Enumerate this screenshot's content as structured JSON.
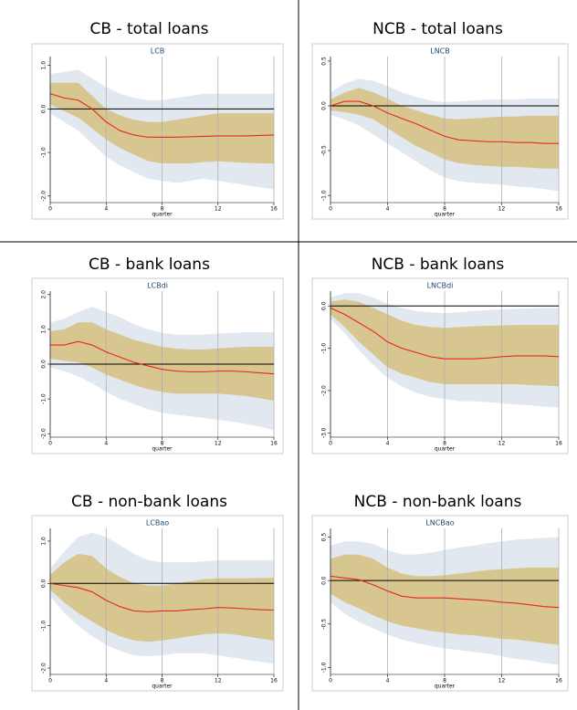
{
  "chart_data": [
    {
      "type": "irf",
      "title": "CB - total loans",
      "subtitle": "LCB",
      "xlabel": "quarter",
      "x": [
        0,
        1,
        2,
        3,
        4,
        5,
        6,
        7,
        8,
        9,
        10,
        11,
        12,
        13,
        14,
        15,
        16
      ],
      "xlim": [
        0,
        16
      ],
      "xticks": [
        0,
        4,
        8,
        12,
        16
      ],
      "ylim": [
        -2.15,
        1.2
      ],
      "yticks": [
        {
          "value": 1,
          "label": "1.0"
        },
        {
          "value": 0,
          "label": "0.0"
        },
        {
          "value": -1,
          "label": "-1.0"
        },
        {
          "value": -2,
          "label": "-2.0"
        }
      ],
      "hline": 0,
      "grid": true,
      "color": "#e8251f",
      "values": [
        0.35,
        0.25,
        0.2,
        0.0,
        -0.3,
        -0.5,
        -0.6,
        -0.65,
        -0.65,
        -0.65,
        -0.64,
        -0.63,
        -0.62,
        -0.62,
        -0.62,
        -0.61,
        -0.6
      ],
      "bands": [
        {
          "color": "#e1e8ef",
          "upper": [
            0.8,
            0.85,
            0.9,
            0.7,
            0.5,
            0.35,
            0.25,
            0.2,
            0.2,
            0.25,
            0.3,
            0.35,
            0.35,
            0.35,
            0.35,
            0.35,
            0.35
          ],
          "lower": [
            -0.1,
            -0.3,
            -0.5,
            -0.8,
            -1.1,
            -1.3,
            -1.45,
            -1.6,
            -1.65,
            -1.7,
            -1.65,
            -1.6,
            -1.65,
            -1.7,
            -1.75,
            -1.8,
            -1.85
          ]
        },
        {
          "color": "#d7c68f",
          "upper": [
            0.6,
            0.6,
            0.6,
            0.3,
            0.0,
            -0.15,
            -0.25,
            -0.3,
            -0.3,
            -0.25,
            -0.2,
            -0.15,
            -0.1,
            -0.1,
            -0.1,
            -0.1,
            -0.1
          ],
          "lower": [
            0.1,
            -0.05,
            -0.2,
            -0.45,
            -0.7,
            -0.9,
            -1.05,
            -1.2,
            -1.25,
            -1.25,
            -1.25,
            -1.22,
            -1.2,
            -1.22,
            -1.24,
            -1.25,
            -1.25
          ]
        }
      ]
    },
    {
      "type": "irf",
      "title": "NCB - total loans",
      "subtitle": "LNCB",
      "xlabel": "quarter",
      "x": [
        0,
        1,
        2,
        3,
        4,
        5,
        6,
        7,
        8,
        9,
        10,
        11,
        12,
        13,
        14,
        15,
        16
      ],
      "xlim": [
        0,
        16
      ],
      "xticks": [
        0,
        4,
        8,
        12,
        16
      ],
      "ylim": [
        -1.08,
        0.55
      ],
      "yticks": [
        0.5,
        {
          "value": 0,
          "label": "0.0"
        },
        -0.5,
        {
          "value": -1,
          "label": "-1.0"
        }
      ],
      "hline": 0,
      "grid": true,
      "color": "#e8251f",
      "values": [
        0.0,
        0.05,
        0.05,
        0.0,
        -0.08,
        -0.14,
        -0.2,
        -0.27,
        -0.34,
        -0.38,
        -0.39,
        -0.4,
        -0.4,
        -0.41,
        -0.41,
        -0.42,
        -0.42
      ],
      "bands": [
        {
          "color": "#e1e8ef",
          "upper": [
            0.15,
            0.25,
            0.3,
            0.28,
            0.22,
            0.15,
            0.1,
            0.06,
            0.04,
            0.05,
            0.06,
            0.07,
            0.07,
            0.07,
            0.08,
            0.08,
            0.08
          ],
          "lower": [
            -0.1,
            -0.15,
            -0.22,
            -0.32,
            -0.42,
            -0.52,
            -0.62,
            -0.72,
            -0.8,
            -0.84,
            -0.86,
            -0.87,
            -0.88,
            -0.9,
            -0.91,
            -0.93,
            -0.95
          ]
        },
        {
          "color": "#d7c68f",
          "upper": [
            0.07,
            0.15,
            0.2,
            0.15,
            0.08,
            0.0,
            -0.05,
            -0.1,
            -0.14,
            -0.15,
            -0.14,
            -0.13,
            -0.12,
            -0.12,
            -0.11,
            -0.11,
            -0.11
          ],
          "lower": [
            -0.05,
            -0.07,
            -0.1,
            -0.15,
            -0.25,
            -0.35,
            -0.45,
            -0.52,
            -0.6,
            -0.64,
            -0.66,
            -0.67,
            -0.68,
            -0.68,
            -0.69,
            -0.7,
            -0.7
          ]
        }
      ]
    },
    {
      "type": "irf",
      "title": "CB - bank loans",
      "subtitle": "LCBdi",
      "xlabel": "quarter",
      "x": [
        0,
        1,
        2,
        3,
        4,
        5,
        6,
        7,
        8,
        9,
        10,
        11,
        12,
        13,
        14,
        15,
        16
      ],
      "xlim": [
        0,
        16
      ],
      "xticks": [
        0,
        4,
        8,
        12,
        16
      ],
      "ylim": [
        -2.1,
        2.1
      ],
      "yticks": [
        {
          "value": 2,
          "label": "2.0"
        },
        {
          "value": 1,
          "label": "1.0"
        },
        {
          "value": 0,
          "label": "0.0"
        },
        {
          "value": -1,
          "label": "-1.0"
        },
        {
          "value": -2,
          "label": "-2.0"
        }
      ],
      "hline": 0,
      "grid": true,
      "color": "#e8251f",
      "values": [
        0.55,
        0.55,
        0.65,
        0.55,
        0.35,
        0.2,
        0.05,
        -0.05,
        -0.15,
        -0.2,
        -0.22,
        -0.22,
        -0.2,
        -0.2,
        -0.22,
        -0.25,
        -0.28
      ],
      "bands": [
        {
          "color": "#e1e8ef",
          "upper": [
            1.2,
            1.3,
            1.5,
            1.65,
            1.5,
            1.35,
            1.15,
            1.0,
            0.9,
            0.85,
            0.85,
            0.85,
            0.88,
            0.9,
            0.92,
            0.92,
            0.92
          ],
          "lower": [
            -0.1,
            -0.2,
            -0.35,
            -0.55,
            -0.8,
            -1.0,
            -1.15,
            -1.3,
            -1.4,
            -1.45,
            -1.5,
            -1.55,
            -1.6,
            -1.65,
            -1.72,
            -1.8,
            -1.9
          ]
        },
        {
          "color": "#d7c68f",
          "upper": [
            0.95,
            1.0,
            1.2,
            1.2,
            1.0,
            0.85,
            0.7,
            0.6,
            0.5,
            0.45,
            0.42,
            0.42,
            0.45,
            0.48,
            0.5,
            0.5,
            0.5
          ],
          "lower": [
            0.15,
            0.1,
            0.05,
            -0.1,
            -0.3,
            -0.45,
            -0.6,
            -0.72,
            -0.8,
            -0.85,
            -0.85,
            -0.85,
            -0.85,
            -0.88,
            -0.92,
            -0.98,
            -1.05
          ]
        }
      ]
    },
    {
      "type": "irf",
      "title": "NCB - bank loans",
      "subtitle": "LNCBdi",
      "xlabel": "quarter",
      "x": [
        0,
        1,
        2,
        3,
        4,
        5,
        6,
        7,
        8,
        9,
        10,
        11,
        12,
        13,
        14,
        15,
        16
      ],
      "xlim": [
        0,
        16
      ],
      "xticks": [
        0,
        4,
        8,
        12,
        16
      ],
      "ylim": [
        -3.1,
        0.35
      ],
      "yticks": [
        {
          "value": 0,
          "label": "0.0"
        },
        {
          "value": -1,
          "label": "-1.0"
        },
        {
          "value": -2,
          "label": "-2.0"
        },
        {
          "value": -3,
          "label": "-3.0"
        }
      ],
      "hline": 0,
      "grid": true,
      "color": "#e8251f",
      "values": [
        -0.05,
        -0.2,
        -0.4,
        -0.6,
        -0.85,
        -1.0,
        -1.1,
        -1.2,
        -1.25,
        -1.25,
        -1.25,
        -1.23,
        -1.2,
        -1.18,
        -1.18,
        -1.18,
        -1.2
      ],
      "bands": [
        {
          "color": "#e1e8ef",
          "upper": [
            0.2,
            0.3,
            0.3,
            0.2,
            0.05,
            -0.05,
            -0.12,
            -0.15,
            -0.17,
            -0.15,
            -0.12,
            -0.1,
            -0.08,
            -0.07,
            -0.06,
            -0.05,
            -0.05
          ],
          "lower": [
            -0.3,
            -0.65,
            -1.05,
            -1.4,
            -1.7,
            -1.9,
            -2.05,
            -2.15,
            -2.2,
            -2.25,
            -2.25,
            -2.27,
            -2.3,
            -2.33,
            -2.35,
            -2.38,
            -2.4
          ]
        },
        {
          "color": "#d7c68f",
          "upper": [
            0.1,
            0.15,
            0.1,
            -0.05,
            -0.2,
            -0.35,
            -0.45,
            -0.5,
            -0.52,
            -0.5,
            -0.48,
            -0.47,
            -0.46,
            -0.45,
            -0.45,
            -0.45,
            -0.45
          ],
          "lower": [
            -0.2,
            -0.5,
            -0.85,
            -1.15,
            -1.45,
            -1.6,
            -1.7,
            -1.8,
            -1.85,
            -1.85,
            -1.85,
            -1.85,
            -1.85,
            -1.85,
            -1.87,
            -1.88,
            -1.9
          ]
        }
      ]
    },
    {
      "type": "irf",
      "title": "CB - non-bank loans",
      "subtitle": "LCBao",
      "xlabel": "quarter",
      "x": [
        0,
        1,
        2,
        3,
        4,
        5,
        6,
        7,
        8,
        9,
        10,
        11,
        12,
        13,
        14,
        15,
        16
      ],
      "xlim": [
        0,
        16
      ],
      "xticks": [
        0,
        4,
        8,
        12,
        16
      ],
      "ylim": [
        -2.15,
        1.3
      ],
      "yticks": [
        {
          "value": 1,
          "label": "1.0"
        },
        {
          "value": 0,
          "label": "0.0"
        },
        {
          "value": -1,
          "label": "-1.0"
        },
        {
          "value": -2,
          "label": "-2.0"
        }
      ],
      "hline": 0,
      "grid": true,
      "color": "#e8251f",
      "values": [
        0.0,
        -0.05,
        -0.1,
        -0.2,
        -0.4,
        -0.55,
        -0.65,
        -0.67,
        -0.65,
        -0.65,
        -0.62,
        -0.6,
        -0.57,
        -0.58,
        -0.6,
        -0.62,
        -0.63
      ],
      "bands": [
        {
          "color": "#e1e8ef",
          "upper": [
            0.35,
            0.75,
            1.1,
            1.2,
            1.1,
            0.9,
            0.7,
            0.55,
            0.5,
            0.5,
            0.5,
            0.52,
            0.55,
            0.55,
            0.55,
            0.55,
            0.55
          ],
          "lower": [
            -0.3,
            -0.7,
            -1.0,
            -1.25,
            -1.45,
            -1.6,
            -1.7,
            -1.72,
            -1.7,
            -1.65,
            -1.65,
            -1.65,
            -1.7,
            -1.75,
            -1.8,
            -1.85,
            -1.9
          ]
        },
        {
          "color": "#d7c68f",
          "upper": [
            0.2,
            0.5,
            0.7,
            0.65,
            0.35,
            0.15,
            0.0,
            -0.05,
            -0.05,
            0.0,
            0.05,
            0.1,
            0.12,
            0.12,
            0.12,
            0.13,
            0.13
          ],
          "lower": [
            -0.15,
            -0.45,
            -0.7,
            -0.9,
            -1.1,
            -1.25,
            -1.35,
            -1.38,
            -1.35,
            -1.3,
            -1.25,
            -1.2,
            -1.18,
            -1.2,
            -1.25,
            -1.3,
            -1.35
          ]
        }
      ]
    },
    {
      "type": "irf",
      "title": "NCB - non-bank loans",
      "subtitle": "LNCBao",
      "xlabel": "quarter",
      "x": [
        0,
        1,
        2,
        3,
        4,
        5,
        6,
        7,
        8,
        9,
        10,
        11,
        12,
        13,
        14,
        15,
        16
      ],
      "xlim": [
        0,
        16
      ],
      "xticks": [
        0,
        4,
        8,
        12,
        16
      ],
      "ylim": [
        -1.08,
        0.6
      ],
      "yticks": [
        0.5,
        {
          "value": 0,
          "label": "0.0"
        },
        -0.5,
        {
          "value": -1,
          "label": "-1.0"
        }
      ],
      "hline": 0,
      "grid": true,
      "color": "#e8251f",
      "values": [
        0.05,
        0.03,
        0.01,
        -0.05,
        -0.12,
        -0.18,
        -0.2,
        -0.2,
        -0.2,
        -0.21,
        -0.22,
        -0.23,
        -0.25,
        -0.26,
        -0.28,
        -0.3,
        -0.31
      ],
      "bands": [
        {
          "color": "#e1e8ef",
          "upper": [
            0.4,
            0.45,
            0.45,
            0.42,
            0.35,
            0.3,
            0.3,
            0.32,
            0.35,
            0.38,
            0.4,
            0.43,
            0.45,
            0.47,
            0.48,
            0.49,
            0.5
          ],
          "lower": [
            -0.25,
            -0.38,
            -0.48,
            -0.55,
            -0.62,
            -0.68,
            -0.72,
            -0.75,
            -0.78,
            -0.8,
            -0.82,
            -0.84,
            -0.87,
            -0.9,
            -0.92,
            -0.95,
            -0.97
          ]
        },
        {
          "color": "#d7c68f",
          "upper": [
            0.25,
            0.3,
            0.3,
            0.25,
            0.15,
            0.08,
            0.05,
            0.05,
            0.06,
            0.08,
            0.1,
            0.12,
            0.13,
            0.14,
            0.15,
            0.15,
            0.15
          ],
          "lower": [
            -0.15,
            -0.25,
            -0.32,
            -0.4,
            -0.47,
            -0.52,
            -0.55,
            -0.58,
            -0.6,
            -0.62,
            -0.63,
            -0.65,
            -0.67,
            -0.68,
            -0.7,
            -0.72,
            -0.74
          ]
        }
      ]
    }
  ]
}
